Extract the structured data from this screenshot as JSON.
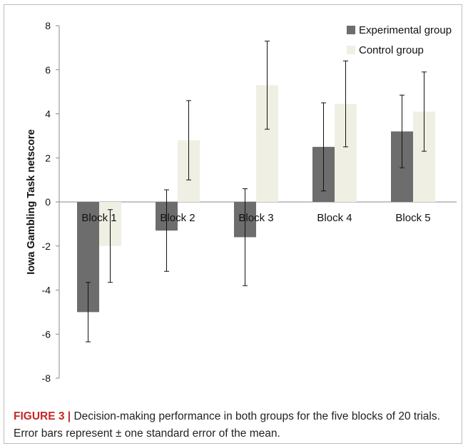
{
  "chart_data": {
    "type": "bar",
    "ylabel": "Iowa Gambling Task netscore",
    "xlabel": "",
    "ylim": [
      -8,
      8
    ],
    "yticks": [
      8,
      6,
      4,
      2,
      0,
      -2,
      -4,
      -6,
      -8
    ],
    "categories": [
      "Block 1",
      "Block 2",
      "Block 3",
      "Block 4",
      "Block 5"
    ],
    "series": [
      {
        "name": "Experimental group",
        "color": "#6d6d6d",
        "values": [
          -5.0,
          -1.3,
          -1.6,
          2.5,
          3.2
        ],
        "error": [
          1.35,
          1.85,
          2.2,
          2.0,
          1.65
        ]
      },
      {
        "name": "Control group",
        "color": "#efefe3",
        "values": [
          -2.0,
          2.8,
          5.3,
          4.45,
          4.1
        ],
        "error": [
          1.65,
          1.8,
          2.0,
          1.95,
          1.8
        ]
      }
    ],
    "legend_position": "top-right",
    "grid": false
  },
  "caption": {
    "label": "FIGURE 3 |",
    "text": " Decision-making performance in both groups for the five blocks of 20 trials. Error bars represent ± one standard error of the mean."
  }
}
